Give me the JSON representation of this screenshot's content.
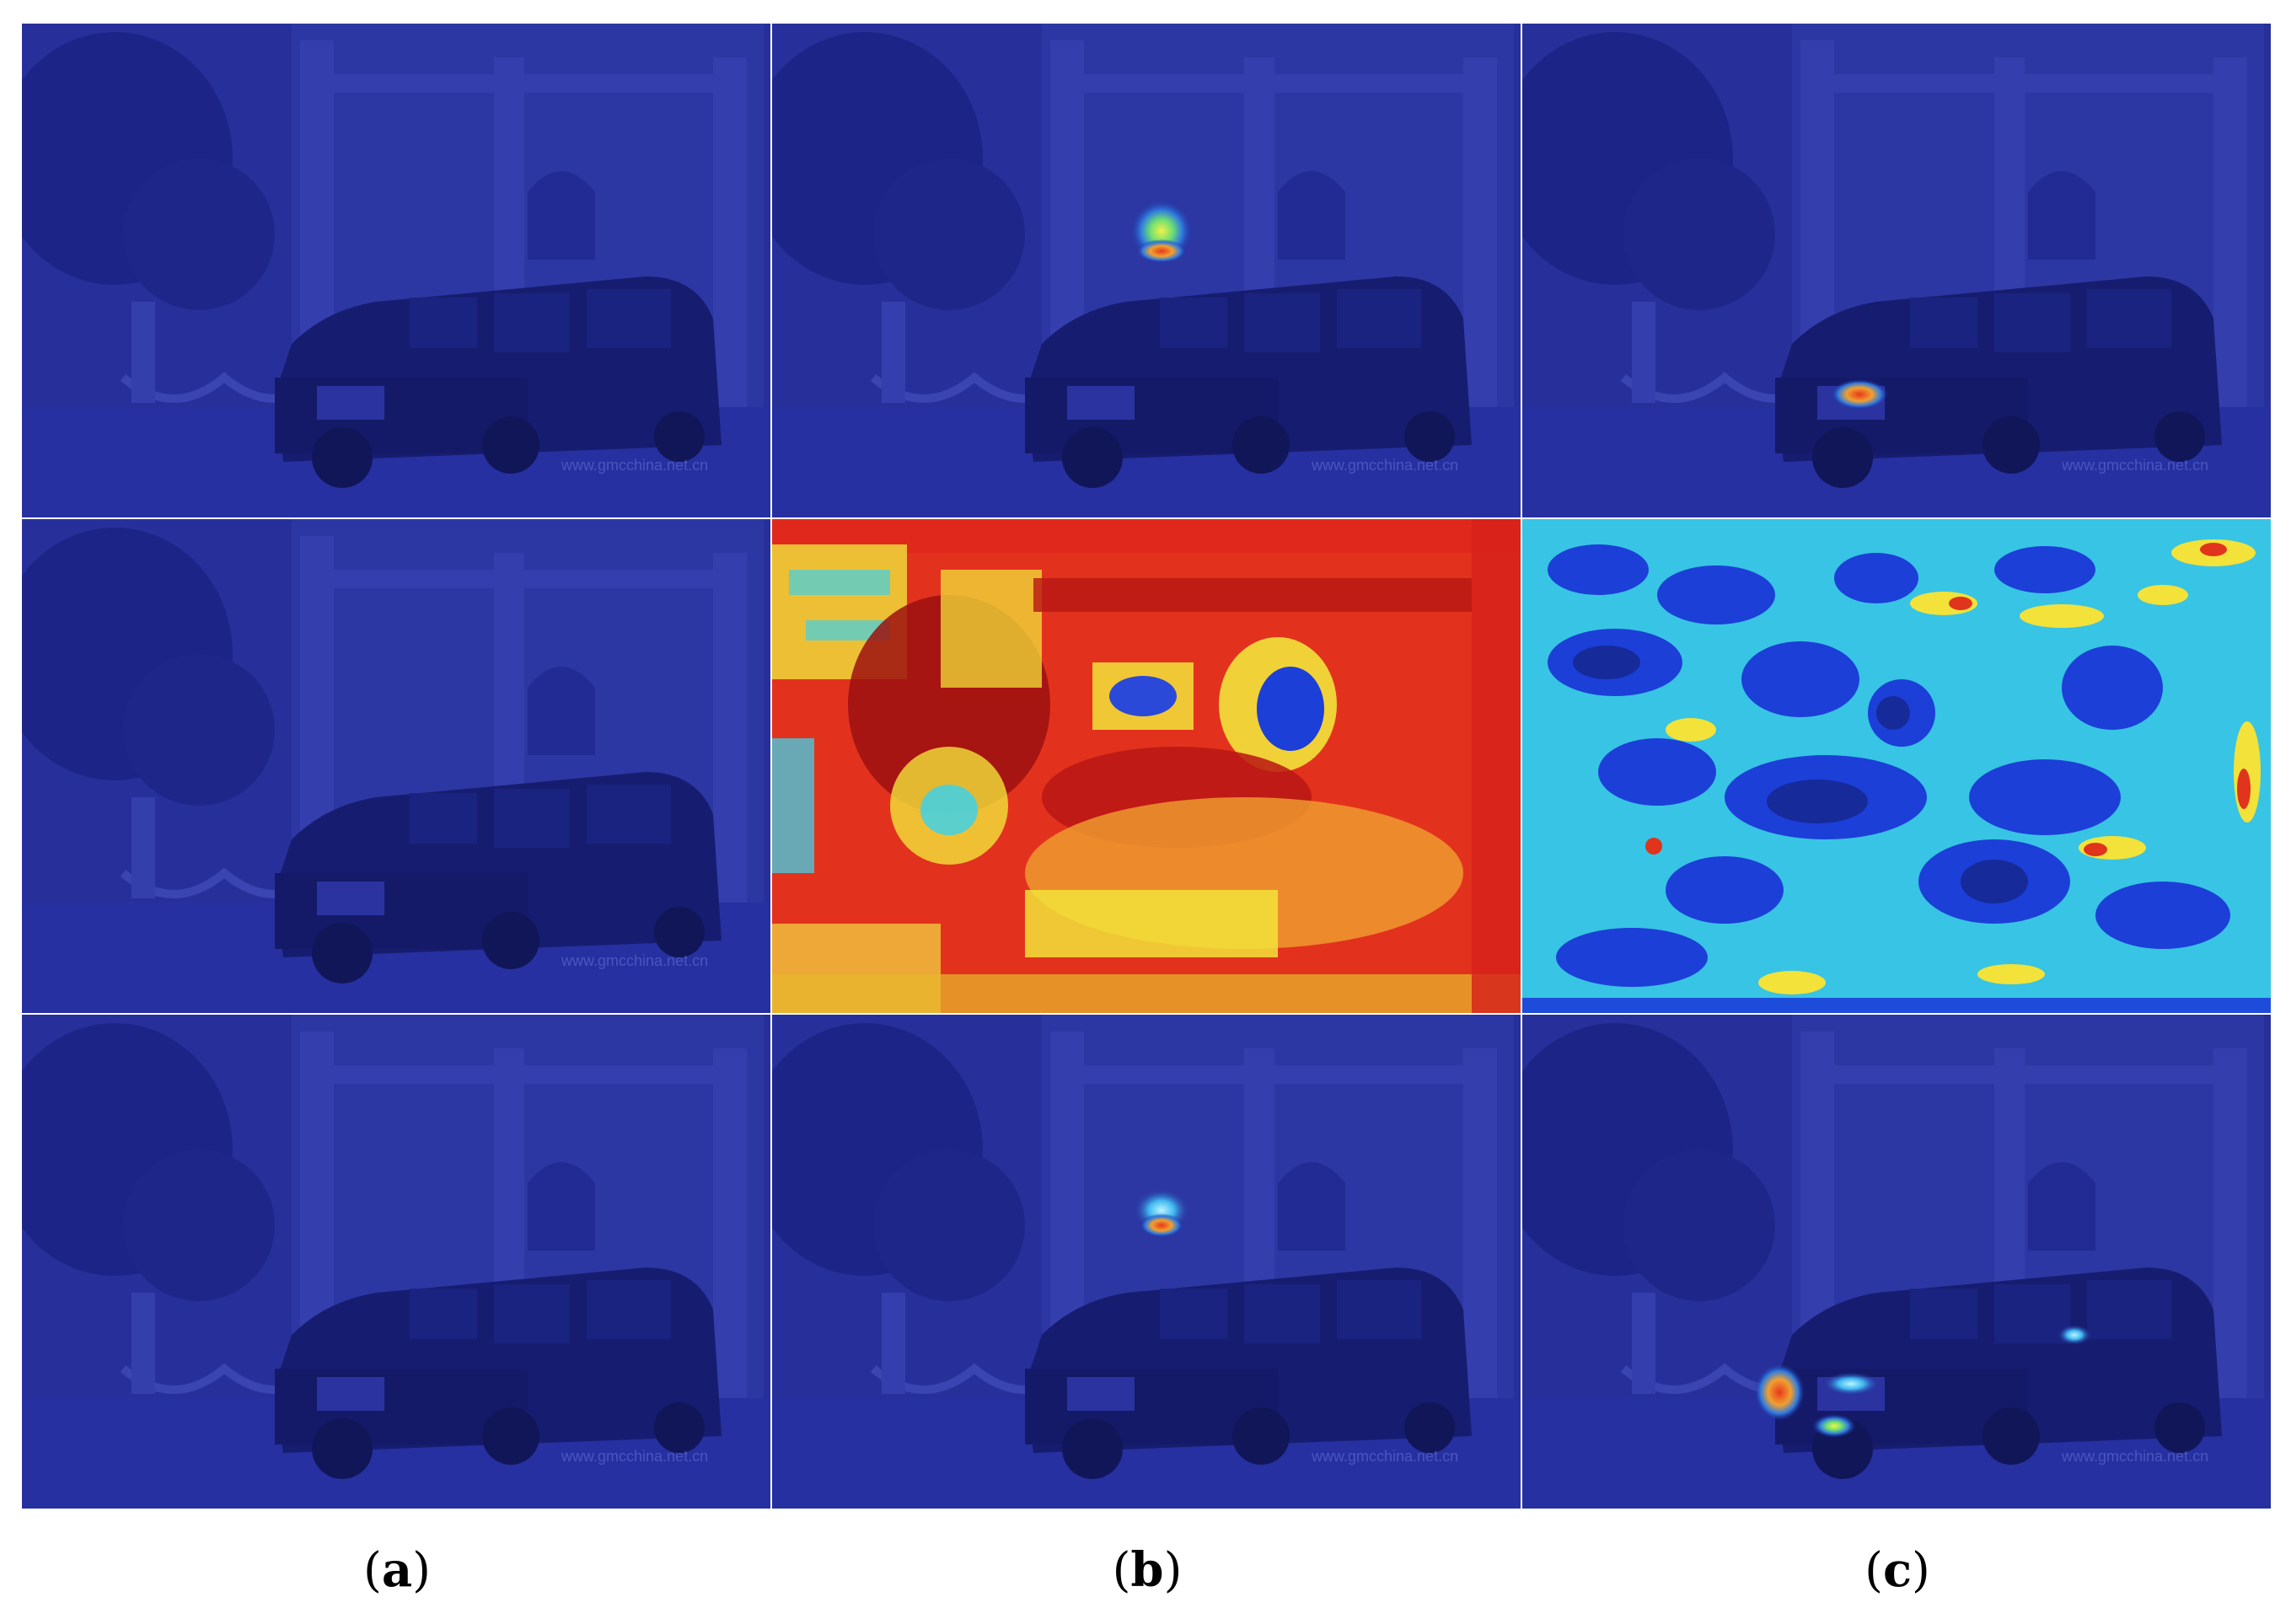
{
  "figure": {
    "watermark_text": "www.gmcchina.net.cn",
    "columns": [
      {
        "id": "a",
        "caption_letter": "a"
      },
      {
        "id": "b",
        "caption_letter": "b"
      },
      {
        "id": "c",
        "caption_letter": "c"
      }
    ],
    "colors": {
      "base_overlay": "#1f2a9c",
      "heat_red": "#e0281c",
      "heat_yellow": "#f2e23a",
      "heat_cyan": "#3fd1e8",
      "heat_blue": "#1c3fd8",
      "heat_dark_red": "#9c1010"
    },
    "panels": [
      {
        "row": 1,
        "col": "a",
        "heatmap": "none"
      },
      {
        "row": 1,
        "col": "b",
        "heatmap": "small-spot-on-roof"
      },
      {
        "row": 1,
        "col": "c",
        "heatmap": "small-spot-on-grille"
      },
      {
        "row": 2,
        "col": "a",
        "heatmap": "none"
      },
      {
        "row": 2,
        "col": "b",
        "heatmap": "dense-red-yellow"
      },
      {
        "row": 2,
        "col": "c",
        "heatmap": "dense-cyan-blue"
      },
      {
        "row": 3,
        "col": "a",
        "heatmap": "none"
      },
      {
        "row": 3,
        "col": "b",
        "heatmap": "small-spot-on-roof"
      },
      {
        "row": 3,
        "col": "c",
        "heatmap": "spots-on-headlights"
      }
    ]
  }
}
